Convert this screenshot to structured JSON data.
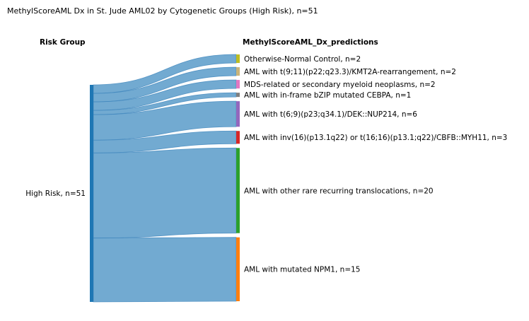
{
  "title": "MethylScoreAML Dx in St. Jude AML02 by Cytogenetic Groups (High Risk), n=51",
  "left_header": "Risk Group",
  "right_header": "MethylScoreAML_Dx_predictions",
  "source": {
    "name": "High Risk",
    "label": "High Risk, n=51",
    "count": 51,
    "color": "#1f77b4"
  },
  "flow_color": "#5f9ecb",
  "targets": [
    {
      "label": "Otherwise-Normal Control, n=2",
      "count": 2,
      "color": "#bcbd22"
    },
    {
      "label": "AML with t(9;11)(p22;q23.3)/KMT2A-rearrangement, n=2",
      "count": 2,
      "color": "#c9b47a"
    },
    {
      "label": "MDS-related or secondary myeloid neoplasms, n=2",
      "count": 2,
      "color": "#e377c2"
    },
    {
      "label": "AML with in-frame bZIP mutated CEBPA, n=1",
      "count": 1,
      "color": "#7f7f7f"
    },
    {
      "label": "AML with t(6;9)(p23;q34.1)/DEK::NUP214, n=6",
      "count": 6,
      "color": "#9467bd"
    },
    {
      "label": "AML with inv(16)(p13.1q22) or t(16;16)(p13.1;q22)/CBFB::MYH11, n=3",
      "count": 3,
      "color": "#d62728"
    },
    {
      "label": "AML with other rare recurring translocations, n=20",
      "count": 20,
      "color": "#2ca02c"
    },
    {
      "label": "AML with mutated NPM1, n=15",
      "count": 15,
      "color": "#ff7f0e"
    }
  ]
}
